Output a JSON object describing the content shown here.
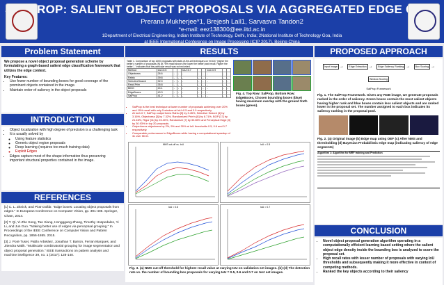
{
  "header": {
    "title": "SALPROP: SALIENT OBJECT PROPOSALS VIA AGGREGATED EDGE CUES",
    "authors": "Prerana Mukherjee*1, Brejesh Lall1, Sarvasva Tandon2",
    "email": "*e-mail: eez138300@ee.iitd.ac.in",
    "affil1": "1Department of Electrical Engineering, Indian Institute of Technology, Delhi, India; 2National Institute of Technology Goa, India",
    "affil2": "at IEEE International Conference on Image Processing (ICIP 2017), Beijing China"
  },
  "sections": {
    "problem": "Problem Statement",
    "intro": "INTRODUCTION",
    "refs": "REFERENCES",
    "results": "RESULTS",
    "approach": "PROPOSED APPROACH",
    "conclusion": "CONCLUSION"
  },
  "problem": {
    "lead": "We propose a novel object proposal generation scheme by formulating a graph-based salient edge classification framework that utilizes the edge context.",
    "key_label": "Key Features:",
    "bullets": [
      "Use fewer number of bounding boxes for good coverage of the prominent objects contained in the image.",
      "Maintain order of saliency in the object proposals"
    ]
  },
  "intro": {
    "bullets": [
      "Object localization with high degree of precision is a challenging task",
      "It is usually solved by",
      "Edges capture most of the shape information thus preserving important structural properties contained in the image."
    ],
    "sub": [
      "Using feature statistics",
      "Generic object region proposals",
      "Deep learning (requires too much training data)",
      "Exploit Edges"
    ]
  },
  "references": [
    "[1] C. L. Zitnick, and Piotr Dollár. \"Edge boxes: Locating object proposals from edges.\" In European Conference on Computer Vision, pp. 391-405. Springer, Cham, 2014.",
    "[2] T. Qi, Yi-Zhe Song, Tao Xiang, Hongggang Zhang, Timothy Hospedales, Yi Li, and Jun Guo. \"Making better use of edges via perceptual grouping.\" In Proceedings of the IEEE Conference on Computer Vision and Pattern Recognition, pp. 1856-1865. 2015.",
    "[3] J. Pont-Tuset, Pablo Arbeláez, Jonathan T. Barron, Ferran Marques, and Jitendra Malik. \"Multiscale combinatorial grouping for image segmentation and object proposal generation.\" IEEE transactions on pattern analysis and machine intelligence 39, no. 1 (2017): 128-140."
  ],
  "results": {
    "table_caption": "Table 1. Comparison of top 1000 proposals with state-of-the-art techniques on VOC07 (higher the better); number of proposals (N) at 75% recall shown (the lower the better) and recall. Higher the better; '-' indicates that the particular result was not recorded.",
    "table_header": [
      "Method",
      "IoU=0.5",
      "",
      "",
      "IoU=0.7",
      "",
      "",
      "IoU=0.9",
      "",
      ""
    ],
    "table_rows": [
      [
        "Objectness",
        "26.6",
        "-",
        "-",
        "-",
        "-",
        "-",
        "-",
        "-",
        "-"
      ],
      [
        "Rahtu",
        "39.8",
        "-",
        "-",
        "-",
        "-",
        "-",
        "-",
        "-",
        "-"
      ],
      [
        "SelectiveSearch",
        "32.0",
        "-",
        "-",
        "-",
        "-",
        "-",
        "-",
        "-",
        "-"
      ],
      [
        "Rand.Prim",
        "35.8",
        "-",
        "-",
        "-",
        "-",
        "-",
        "-",
        "-",
        "-"
      ],
      [
        "BING",
        "24.1",
        "-",
        "-",
        "-",
        "-",
        "-",
        "-",
        "-",
        "-"
      ],
      [
        "EdgeBoxes",
        "40.3",
        "-",
        "-",
        "-",
        "-",
        "-",
        "-",
        "-",
        "-"
      ],
      [
        "SalProp",
        "41.2",
        "-",
        "-",
        "-",
        "-",
        "-",
        "-",
        "-",
        "-"
      ]
    ],
    "red_bullets": [
      "SalProp is the best technique at lower number of proposals achieving over 20% and 19% recall with only 5 window at IoU=0.5 and 0.9 respectively.",
      "At IoU=0.7, SalProp outperforms Rahtu [5] by 3.45%, Selective Search [4] by 3.16%, Objectness [3] by 7.32%, Randomized Prim's [6] by 8.71%, BOP [17] by 21.46%, Rigor [11] by 23.40%, Randomize [7] by 30.85% and Perceptual Edge [3] by 30.93% in top 20 proposals.",
      "Outperforms objectness by 2%, 5% and 30% at IoU thresholds 0.5, 0.6 and 0.7 respectively.",
      "Comparable performance to EdgeBoxes while having a computational speedup of 3x over MCG."
    ],
    "fig4_caption": "Fig. 4. Top Row: SalProp, Bottom Row: EdgeBoxes. Chosen bounding boxes (blue) having maximum overlap with the ground truth boxes (green).",
    "fig3_caption": "Fig. 3. (a) NMS cut-off threshold for highest recall value at varying IoU on validation set images. (b)-(d) The detection rate vs. the number of bounding box proposals for varying IoU = 0.5, 0.6 and 0.7 on test set images.",
    "plot_titles": [
      "NMS cut-off vs. IoU",
      "IoU = 0.5",
      "IoU = 0.6",
      "IoU = 0.7"
    ],
    "legend": [
      "BING",
      "EdgeBoxes",
      "Objectness",
      "Rahtu",
      "Rand.Prim",
      "SelectiveSearch",
      "SalProp",
      "MCG",
      "Endres"
    ],
    "xlabel": "Number of Proposals",
    "ylabel": "Detection Rate"
  },
  "approach": {
    "stages": [
      "Input Image",
      "Edge Extraction",
      "Edge Saliency Ranking",
      "Box Scoring",
      "Window Scoring"
    ],
    "pipeline_label": "SalProp Framework",
    "fig1_caption": "Fig. 1. The SalProp Framework. Given any RGB image, we generate proposals ranked in the order of saliency. Green boxes contain the most salient objects having higher rank and blue boxes contain less salient objects and are ranked lower in the proposal set. The number assigned to each box indicates its saliency ranking in the proposal pool.",
    "fig2_caption": "Fig. 2. (a) Original image (b) Edge map using OEF (c) After NMS and thresholding (d) Bayesian Probabilistic edge map (indicating saliency of edge segments)",
    "algo_title": "Algorithm 1: Algorithm for MRF training and Prediction"
  },
  "conclusion": {
    "bullets": [
      "Novel object proposal generation algorithm operating in a computationally efficient learning based setting where the salient object edge density inside the bounding box is analyzed to score the proposal set.",
      "High recall rates with lesser number of proposals with varying IoU thresholds and subsequently making it more effective in context of competing methods.",
      "Ranked the key objects according to their saliency"
    ]
  }
}
